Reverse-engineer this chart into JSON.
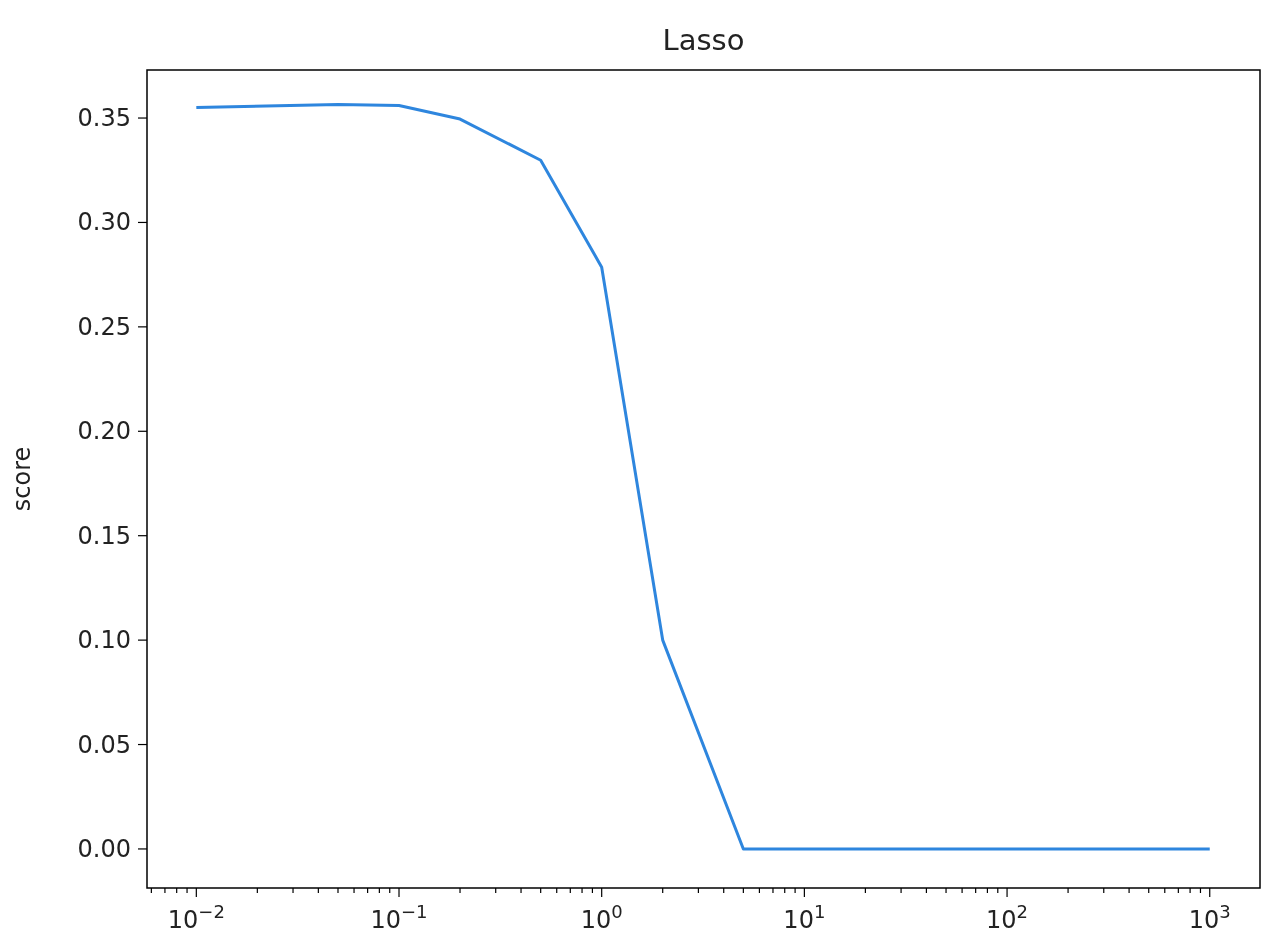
{
  "chart_data": {
    "type": "line",
    "title": "Lasso",
    "ylabel": "score",
    "log": "x",
    "x": [
      0.01,
      0.05,
      0.1,
      0.2,
      0.5,
      1,
      2,
      5,
      10,
      100,
      1000
    ],
    "series": [
      {
        "color": "#2e86de",
        "values": [
          0.355,
          0.3565,
          0.356,
          0.3495,
          0.3298,
          0.2786,
          0.1,
          0,
          0,
          0,
          0
        ]
      }
    ],
    "xlim": [
      0.00571,
      1770
    ],
    "ylim": [
      -0.0187,
      0.373
    ],
    "xticks": [
      {
        "value": 0.006,
        "label": null
      },
      {
        "value": 0.007,
        "label": null
      },
      {
        "value": 0.008,
        "label": null
      },
      {
        "value": 0.009,
        "label": null
      },
      {
        "value": 0.01,
        "label": "10$^{−2}$"
      },
      {
        "value": 0.02,
        "label": null
      },
      {
        "value": 0.03,
        "label": null
      },
      {
        "value": 0.04,
        "label": null
      },
      {
        "value": 0.05,
        "label": null
      },
      {
        "value": 0.06,
        "label": null
      },
      {
        "value": 0.07,
        "label": null
      },
      {
        "value": 0.08,
        "label": null
      },
      {
        "value": 0.09,
        "label": null
      },
      {
        "value": 0.1,
        "label": "10$^{−1}$"
      },
      {
        "value": 0.2,
        "label": null
      },
      {
        "value": 0.3,
        "label": null
      },
      {
        "value": 0.4,
        "label": null
      },
      {
        "value": 0.5,
        "label": null
      },
      {
        "value": 0.6,
        "label": null
      },
      {
        "value": 0.7,
        "label": null
      },
      {
        "value": 0.8,
        "label": null
      },
      {
        "value": 0.9,
        "label": null
      },
      {
        "value": 1,
        "label": "10$^{0}$"
      },
      {
        "value": 2,
        "label": null
      },
      {
        "value": 3,
        "label": null
      },
      {
        "value": 4,
        "label": null
      },
      {
        "value": 5,
        "label": null
      },
      {
        "value": 6,
        "label": null
      },
      {
        "value": 7,
        "label": null
      },
      {
        "value": 8,
        "label": null
      },
      {
        "value": 9,
        "label": null
      },
      {
        "value": 10,
        "label": "10$^{1}$"
      },
      {
        "value": 20,
        "label": null
      },
      {
        "value": 30,
        "label": null
      },
      {
        "value": 40,
        "label": null
      },
      {
        "value": 50,
        "label": null
      },
      {
        "value": 60,
        "label": null
      },
      {
        "value": 70,
        "label": null
      },
      {
        "value": 80,
        "label": null
      },
      {
        "value": 90,
        "label": null
      },
      {
        "value": 100,
        "label": "10$^{2}$"
      },
      {
        "value": 200,
        "label": null
      },
      {
        "value": 300,
        "label": null
      },
      {
        "value": 400,
        "label": null
      },
      {
        "value": 500,
        "label": null
      },
      {
        "value": 600,
        "label": null
      },
      {
        "value": 700,
        "label": null
      },
      {
        "value": 800,
        "label": null
      },
      {
        "value": 900,
        "label": null
      },
      {
        "value": 1000,
        "label": "10$^{3}$"
      }
    ],
    "yticks": [
      {
        "value": 0,
        "label": "0.00"
      },
      {
        "value": 0.05,
        "label": "0.05"
      },
      {
        "value": 0.1,
        "label": "0.10"
      },
      {
        "value": 0.15,
        "label": "0.15"
      },
      {
        "value": 0.2,
        "label": "0.20"
      },
      {
        "value": 0.25,
        "label": "0.25"
      },
      {
        "value": 0.3,
        "label": "0.30"
      },
      {
        "value": 0.35,
        "label": "0.35"
      }
    ],
    "grid": false
  }
}
